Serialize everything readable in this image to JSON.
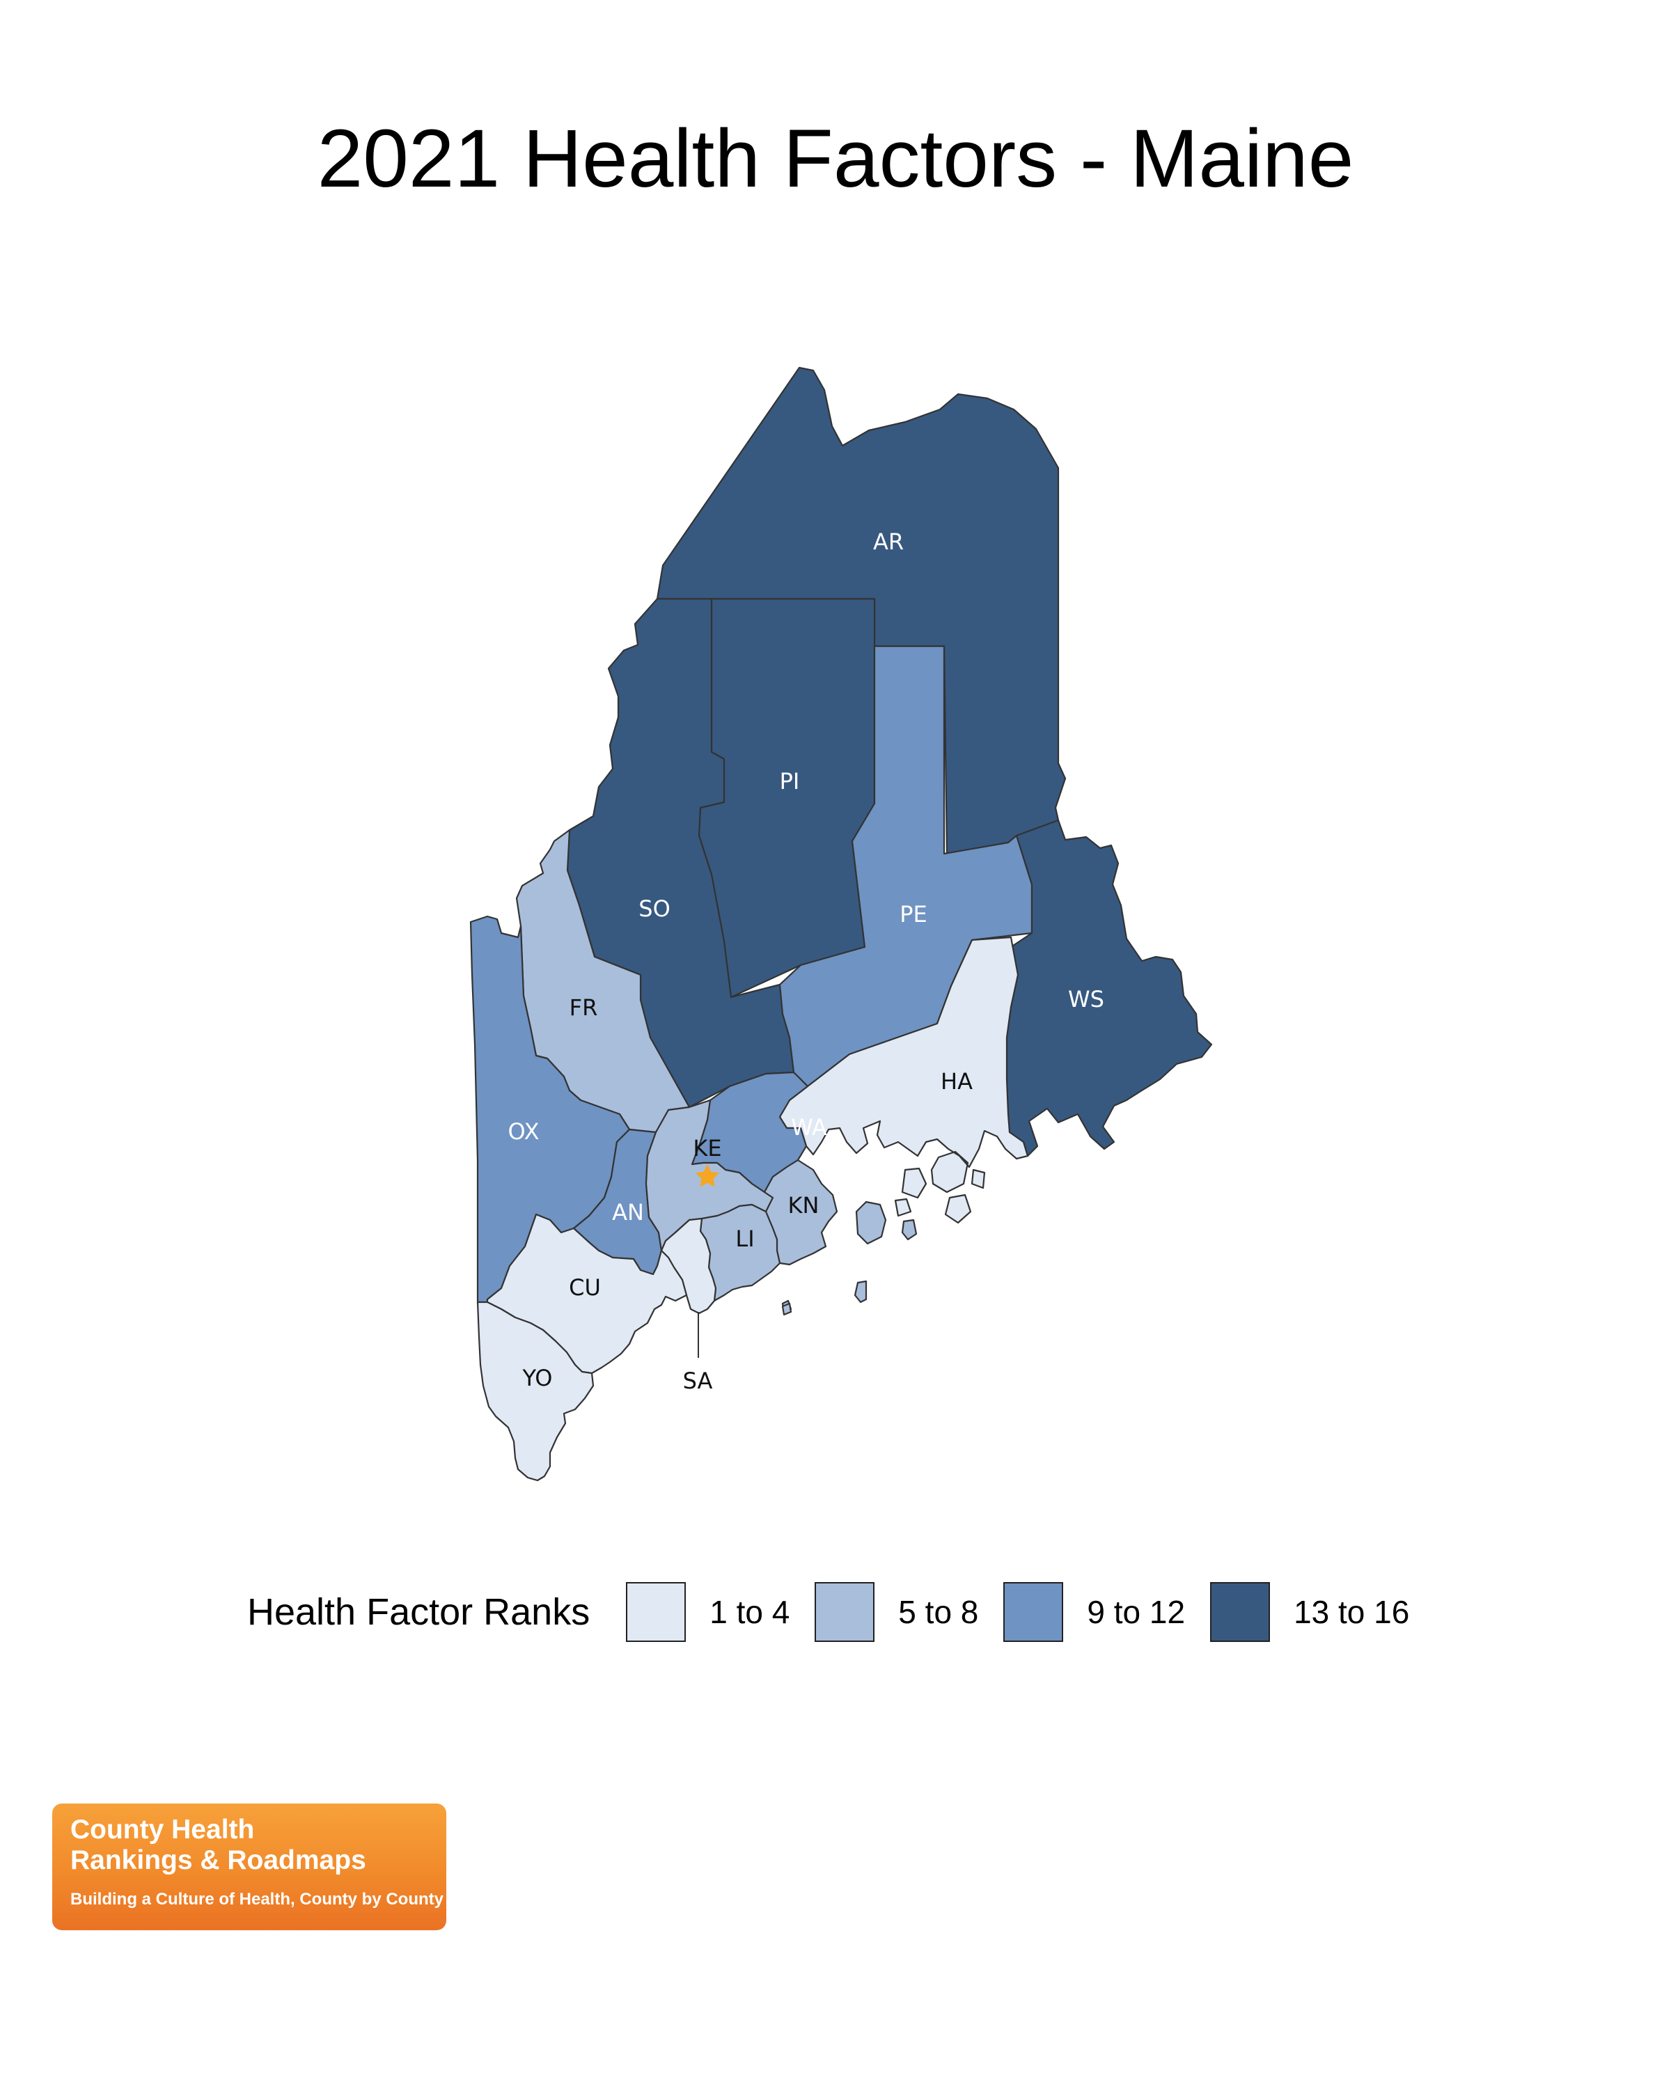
{
  "title": "2021 Health Factors - Maine",
  "legend": {
    "title": "Health Factor Ranks",
    "bins": [
      {
        "label": "1 to 4",
        "color": "#e1e9f4"
      },
      {
        "label": "5 to 8",
        "color": "#a9bedb"
      },
      {
        "label": "9 to 12",
        "color": "#6f93c2"
      },
      {
        "label": "13 to 16",
        "color": "#375980"
      }
    ]
  },
  "counties": [
    {
      "code": "AR",
      "bin": 3
    },
    {
      "code": "PI",
      "bin": 3
    },
    {
      "code": "SO",
      "bin": 3
    },
    {
      "code": "WS",
      "bin": 3
    },
    {
      "code": "PE",
      "bin": 2
    },
    {
      "code": "OX",
      "bin": 2
    },
    {
      "code": "AN",
      "bin": 2
    },
    {
      "code": "WA",
      "bin": 2
    },
    {
      "code": "FR",
      "bin": 1
    },
    {
      "code": "KE",
      "bin": 1
    },
    {
      "code": "LI",
      "bin": 1
    },
    {
      "code": "KN",
      "bin": 1
    },
    {
      "code": "HA",
      "bin": 0
    },
    {
      "code": "CU",
      "bin": 0
    },
    {
      "code": "YO",
      "bin": 0
    },
    {
      "code": "SA",
      "bin": 0
    }
  ],
  "capital_marker": {
    "county": "KE",
    "color": "#f5a623",
    "icon": "star-icon"
  },
  "logo": {
    "line1": "County Health",
    "line2": "Rankings & Roadmaps",
    "tagline": "Building a Culture of Health, County by County"
  }
}
